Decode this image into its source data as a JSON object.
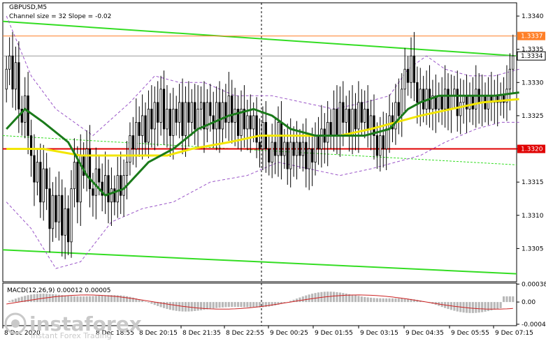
{
  "chart_data": [
    {
      "type": "candlestick",
      "symbol": "GBPUSD,M5",
      "indicator_label": "Channel size = 32 Slope = -0.02",
      "ylim": [
        1.33,
        1.3342
      ],
      "y_ticks": [
        "1.3340",
        "1.3335",
        "1.3330",
        "1.3325",
        "1.3320",
        "1.3315",
        "1.3310",
        "1.3305"
      ],
      "x_ticks": [
        "8 Dec 2020",
        "8 Dec 18:55",
        "8 Dec 20:15",
        "8 Dec 21:35",
        "8 Dec 22:55",
        "9 Dec 00:25",
        "9 Dec 01:55",
        "9 Dec 03:15",
        "9 Dec 04:35",
        "9 Dec 05:55",
        "9 Dec 07:15"
      ],
      "price_labels": {
        "resistance": "1.3337",
        "current": "1.3334",
        "support": "1.3320"
      },
      "levels": {
        "resistance": 1.3337,
        "support": 1.332,
        "current": 1.3334
      },
      "colors": {
        "resistance": "#ff7f27",
        "support": "#e00000",
        "channel": "#33dd22",
        "ma_fast": "#1a7a1a",
        "ma_slow": "#f2e600",
        "envelope": "#9a55c8",
        "current_line": "#999999"
      },
      "channel": {
        "upper": [
          1.33392,
          1.3334
        ],
        "lower": [
          1.33048,
          1.33012
        ],
        "middle": [
          1.3322,
          1.33176
        ]
      },
      "closes": [
        1.3332,
        1.3334,
        1.3329,
        1.3333,
        1.3326,
        1.3324,
        1.3328,
        1.3322,
        1.3319,
        1.3315,
        1.3318,
        1.3312,
        1.3317,
        1.3314,
        1.3308,
        1.3313,
        1.3309,
        1.3313,
        1.3307,
        1.3311,
        1.3306,
        1.3314,
        1.3318,
        1.3312,
        1.3319,
        1.3316,
        1.332,
        1.3314,
        1.3313,
        1.3317,
        1.3315,
        1.3313,
        1.3316,
        1.3312,
        1.3314,
        1.3312,
        1.3316,
        1.3313,
        1.3316,
        1.3318,
        1.3322,
        1.332,
        1.3324,
        1.3322,
        1.3325,
        1.3321,
        1.3326,
        1.3323,
        1.3327,
        1.3324,
        1.3329,
        1.3323,
        1.3326,
        1.3322,
        1.3326,
        1.3324,
        1.3327,
        1.3322,
        1.3327,
        1.3324,
        1.3327,
        1.3323,
        1.3326,
        1.3327,
        1.3323,
        1.3327,
        1.3325,
        1.3323,
        1.3327,
        1.3323,
        1.3327,
        1.3324,
        1.3328,
        1.3324,
        1.3326,
        1.3322,
        1.3326,
        1.3323,
        1.3325,
        1.3323,
        1.3325,
        1.3321,
        1.332,
        1.3324,
        1.332,
        1.3318,
        1.3321,
        1.3319,
        1.3324,
        1.3319,
        1.3321,
        1.3317,
        1.3321,
        1.3319,
        1.3321,
        1.3319,
        1.3321,
        1.3317,
        1.332,
        1.3318,
        1.3322,
        1.332,
        1.3323,
        1.3321,
        1.3324,
        1.3322,
        1.3326,
        1.3322,
        1.3327,
        1.3324,
        1.3326,
        1.3322,
        1.3326,
        1.3323,
        1.3327,
        1.3324,
        1.3326,
        1.3323,
        1.3325,
        1.3322,
        1.3319,
        1.3322,
        1.332,
        1.3323,
        1.3325,
        1.3323,
        1.3327,
        1.3325,
        1.3329,
        1.3332,
        1.333,
        1.3334,
        1.333,
        1.3327,
        1.3329,
        1.3326,
        1.3329,
        1.3326,
        1.3328,
        1.3326,
        1.3328,
        1.3326,
        1.3329,
        1.3326,
        1.3328,
        1.3329,
        1.3325,
        1.3327,
        1.3328,
        1.3326,
        1.3328,
        1.3326,
        1.3329,
        1.3327,
        1.3328,
        1.3326,
        1.3328,
        1.3327,
        1.3328,
        1.3327,
        1.3328,
        1.3327,
        1.3329,
        1.3332,
        1.3334
      ],
      "ma_fast": [
        [
          0,
          1.3323
        ],
        [
          6,
          1.3326
        ],
        [
          12,
          1.3324
        ],
        [
          20,
          1.3321
        ],
        [
          26,
          1.3316
        ],
        [
          32,
          1.3313
        ],
        [
          38,
          1.3314
        ],
        [
          46,
          1.3318
        ],
        [
          54,
          1.332
        ],
        [
          62,
          1.3323
        ],
        [
          72,
          1.3325
        ],
        [
          80,
          1.3326
        ],
        [
          86,
          1.3325
        ],
        [
          92,
          1.3323
        ],
        [
          100,
          1.3322
        ],
        [
          108,
          1.3322
        ],
        [
          116,
          1.3322
        ],
        [
          124,
          1.3323
        ],
        [
          130,
          1.3326
        ],
        [
          134,
          1.3327
        ],
        [
          140,
          1.3328
        ],
        [
          150,
          1.3328
        ],
        [
          158,
          1.3328
        ],
        [
          166,
          1.33285
        ]
      ],
      "ma_slow": [
        [
          0,
          1.332
        ],
        [
          12,
          1.332
        ],
        [
          24,
          1.3319
        ],
        [
          36,
          1.3319
        ],
        [
          44,
          1.3319
        ],
        [
          52,
          1.3319
        ],
        [
          60,
          1.332
        ],
        [
          72,
          1.3321
        ],
        [
          82,
          1.3322
        ],
        [
          92,
          1.3322
        ],
        [
          100,
          1.3322
        ],
        [
          108,
          1.3322
        ],
        [
          118,
          1.3323
        ],
        [
          126,
          1.3324
        ],
        [
          134,
          1.3325
        ],
        [
          144,
          1.3326
        ],
        [
          154,
          1.3327
        ],
        [
          166,
          1.33275
        ]
      ],
      "env_upper": [
        [
          0,
          1.334
        ],
        [
          8,
          1.3331
        ],
        [
          16,
          1.3326
        ],
        [
          28,
          1.3322
        ],
        [
          40,
          1.3327
        ],
        [
          48,
          1.3331
        ],
        [
          56,
          1.333
        ],
        [
          64,
          1.333
        ],
        [
          74,
          1.3328
        ],
        [
          86,
          1.3328
        ],
        [
          96,
          1.3327
        ],
        [
          106,
          1.3326
        ],
        [
          116,
          1.3327
        ],
        [
          124,
          1.3328
        ],
        [
          130,
          1.3332
        ],
        [
          136,
          1.3334
        ],
        [
          142,
          1.3332
        ],
        [
          150,
          1.3331
        ],
        [
          158,
          1.3331
        ],
        [
          166,
          1.3332
        ]
      ],
      "env_lower": [
        [
          0,
          1.3312
        ],
        [
          8,
          1.3308
        ],
        [
          16,
          1.3302
        ],
        [
          24,
          1.3303
        ],
        [
          34,
          1.3309
        ],
        [
          44,
          1.3311
        ],
        [
          54,
          1.3312
        ],
        [
          66,
          1.3315
        ],
        [
          78,
          1.3316
        ],
        [
          88,
          1.3318
        ],
        [
          98,
          1.3317
        ],
        [
          108,
          1.3316
        ],
        [
          118,
          1.3317
        ],
        [
          126,
          1.3318
        ],
        [
          134,
          1.3319
        ],
        [
          142,
          1.3321
        ],
        [
          152,
          1.3323
        ],
        [
          160,
          1.3324
        ],
        [
          166,
          1.3324
        ]
      ]
    },
    {
      "type": "histogram",
      "label": "MACD(12,26,9) 0.00012 0.00005",
      "ylim": [
        -0.0005,
        0.0004
      ],
      "y_ticks": [
        "0.00038",
        "0.00",
        "-0.00047"
      ],
      "signal_color": "#cc2222",
      "bar_color": "#b8b8b8"
    }
  ],
  "watermark": {
    "brand": "instaforex",
    "tagline": "Instant Forex Trading"
  }
}
